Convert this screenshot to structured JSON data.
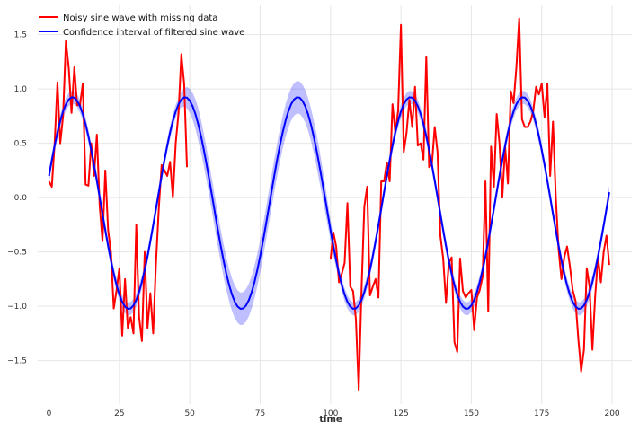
{
  "chart_data": {
    "type": "line",
    "title": "",
    "xlabel": "time",
    "ylabel": "",
    "xlim": [
      -4,
      207
    ],
    "ylim": [
      -1.9,
      1.77
    ],
    "xticks": [
      0,
      25,
      50,
      75,
      100,
      125,
      150,
      175,
      200
    ],
    "yticks": [
      -1.5,
      -1.0,
      -0.5,
      0.0,
      0.5,
      1.0,
      1.5
    ],
    "xtick_labels": [
      "0",
      "25",
      "50",
      "75",
      "100",
      "125",
      "150",
      "175",
      "200"
    ],
    "ytick_labels": [
      "−1.5",
      "−1.0",
      "−0.5",
      "0.0",
      "0.5",
      "1.0",
      "1.5"
    ],
    "grid": true,
    "legend_position": "top-left",
    "series": [
      {
        "name": "Noisy sine wave with missing data",
        "color": "#ff0000",
        "x": [
          0,
          1,
          2,
          3,
          4,
          5,
          6,
          7,
          8,
          9,
          10,
          11,
          12,
          13,
          14,
          15,
          16,
          17,
          18,
          19,
          20,
          21,
          22,
          23,
          24,
          25,
          26,
          27,
          28,
          29,
          30,
          31,
          32,
          33,
          34,
          35,
          36,
          37,
          38,
          39,
          40,
          41,
          42,
          43,
          44,
          45,
          46,
          47,
          48,
          49,
          100,
          101,
          102,
          103,
          104,
          105,
          106,
          107,
          108,
          109,
          110,
          111,
          112,
          113,
          114,
          115,
          116,
          117,
          118,
          119,
          120,
          121,
          122,
          123,
          124,
          125,
          126,
          127,
          128,
          129,
          130,
          131,
          132,
          133,
          134,
          135,
          136,
          137,
          138,
          139,
          140,
          141,
          142,
          143,
          144,
          145,
          146,
          147,
          148,
          149,
          150,
          151,
          152,
          153,
          154,
          155,
          156,
          157,
          158,
          159,
          160,
          161,
          162,
          163,
          164,
          165,
          166,
          167,
          168,
          169,
          170,
          171,
          172,
          173,
          174,
          175,
          176,
          177,
          178,
          179,
          180,
          181,
          182,
          183,
          184,
          185,
          186,
          187,
          188,
          189,
          190,
          191,
          192,
          193,
          194,
          195,
          196,
          197,
          198,
          199
        ],
        "y": [
          0.15,
          0.1,
          0.5,
          1.06,
          0.5,
          0.75,
          1.44,
          1.2,
          0.78,
          1.2,
          0.85,
          0.85,
          1.05,
          0.12,
          0.11,
          0.5,
          0.2,
          0.58,
          -0.08,
          -0.4,
          0.25,
          -0.3,
          -0.5,
          -1.02,
          -0.85,
          -0.65,
          -1.27,
          -0.75,
          -1.2,
          -1.1,
          -1.25,
          -0.25,
          -1.1,
          -1.32,
          -0.5,
          -1.2,
          -0.88,
          -1.25,
          -0.6,
          -0.1,
          0.3,
          0.25,
          0.2,
          0.33,
          0.0,
          0.5,
          0.78,
          1.32,
          1.05,
          0.28,
          -0.57,
          -0.32,
          -0.45,
          -0.78,
          -0.7,
          -0.6,
          -0.05,
          -0.82,
          -0.86,
          -1.12,
          -1.77,
          -0.85,
          -0.08,
          0.1,
          -0.9,
          -0.82,
          -0.75,
          -0.92,
          0.15,
          0.15,
          0.32,
          0.15,
          0.86,
          0.6,
          0.8,
          1.59,
          0.42,
          0.6,
          0.9,
          0.65,
          1.02,
          0.48,
          0.5,
          0.35,
          1.3,
          0.28,
          0.31,
          0.65,
          0.42,
          -0.35,
          -0.56,
          -0.97,
          -0.6,
          -0.55,
          -1.33,
          -1.42,
          -0.56,
          -0.86,
          -0.92,
          -0.88,
          -0.85,
          -1.22,
          -0.92,
          -0.85,
          -0.73,
          0.15,
          -1.05,
          0.47,
          0.1,
          0.77,
          0.5,
          0.0,
          0.47,
          0.13,
          0.98,
          0.87,
          1.2,
          1.65,
          0.72,
          0.65,
          0.65,
          0.7,
          0.8,
          1.02,
          0.95,
          1.05,
          0.74,
          1.05,
          0.2,
          0.7,
          0.0,
          -0.48,
          -0.75,
          -0.55,
          -0.45,
          -0.63,
          -0.85,
          -0.95,
          -1.3,
          -1.6,
          -1.4,
          -0.65,
          -0.82,
          -1.4,
          -0.9,
          -0.55,
          -0.78,
          -0.5,
          -0.35,
          -0.62
        ],
        "breaks_after_x": [
          49
        ]
      },
      {
        "name": "Confidence interval of filtered sine wave",
        "color": "#0000ff",
        "band_color": "#0000ff",
        "x_start": 0,
        "x_end": 199,
        "x_step": 1,
        "mean_model": "sine",
        "amplitude": 0.975,
        "offset": -0.05,
        "period": 40,
        "phase_x0": 0,
        "phase_value": 0.2,
        "band_halfwidth_observed": 0.06,
        "band_halfwidth_missing": 0.15,
        "observed_ranges": [
          [
            0,
            49
          ],
          [
            100,
            199
          ]
        ]
      }
    ]
  }
}
